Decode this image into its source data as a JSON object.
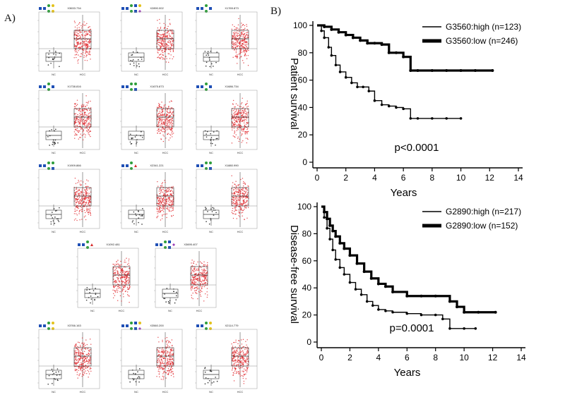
{
  "panel_labels": {
    "a": "A)",
    "b": "B)"
  },
  "panel_a": {
    "plots": [
      {
        "id": "a1",
        "title": "X3633.734",
        "glycan": "g1"
      },
      {
        "id": "a2",
        "title": "X2890.002",
        "glycan": "g2"
      },
      {
        "id": "a3",
        "title": "X1765.873",
        "glycan": "g3"
      },
      {
        "id": "a4",
        "title": "X1738.816",
        "glycan": "g3"
      },
      {
        "id": "a5",
        "title": "X1675.873",
        "glycan": "g4"
      },
      {
        "id": "a6",
        "title": "X1686.734",
        "glycan": "g3"
      },
      {
        "id": "a7",
        "title": "X1909.866",
        "glycan": "g4"
      },
      {
        "id": "a8",
        "title": "X2341.221",
        "glycan": "g5"
      },
      {
        "id": "a9",
        "title": "X1880.990",
        "glycan": "g4"
      },
      {
        "id": "a10",
        "title": "X1092.481",
        "glycan": "g5"
      },
      {
        "id": "a11",
        "title": "X3695.407",
        "glycan": "g6"
      },
      {
        "id": "a12",
        "title": "X3766.163",
        "glycan": "g1"
      },
      {
        "id": "a13",
        "title": "X3560.200",
        "glycan": "g2"
      },
      {
        "id": "a14",
        "title": "X2114.779",
        "glycan": "g1"
      }
    ],
    "group_labels": [
      "NC",
      "HCC"
    ]
  },
  "chart_data": [
    {
      "type": "line",
      "title": "",
      "xlabel": "Years",
      "ylabel": "Patient survival",
      "xlim": [
        0,
        14
      ],
      "ylim": [
        0,
        100
      ],
      "xticks": [
        0,
        2,
        4,
        6,
        8,
        10,
        12,
        14
      ],
      "yticks": [
        0,
        20,
        40,
        60,
        80,
        100
      ],
      "annotation": "p<0.0001",
      "legend_position": "top-right",
      "series": [
        {
          "name": "G3560:high (n=123)",
          "line_width": "thin",
          "x": [
            0,
            0.3,
            0.5,
            0.8,
            1.0,
            1.3,
            1.6,
            2.0,
            2.4,
            2.8,
            3.2,
            3.6,
            4.0,
            4.5,
            5.0,
            5.5,
            6.0,
            6.5,
            7.0,
            8.0,
            9.0,
            10.0
          ],
          "y": [
            100,
            96,
            91,
            84,
            78,
            71,
            66,
            62,
            58,
            55,
            55,
            52,
            45,
            42,
            41,
            40,
            39,
            32,
            32,
            32,
            32,
            32
          ]
        },
        {
          "name": "G3560:low (n=246)",
          "line_width": "thick",
          "x": [
            0,
            0.5,
            1.0,
            1.5,
            2.0,
            2.5,
            3.0,
            3.5,
            4.0,
            4.5,
            5.0,
            5.5,
            6.0,
            6.5,
            7.0,
            8.0,
            9.0,
            10.0,
            11.0,
            12.2
          ],
          "y": [
            100,
            99,
            97,
            95,
            93,
            91,
            89,
            87,
            87,
            86,
            80,
            80,
            77,
            67,
            67,
            67,
            67,
            67,
            67,
            67
          ]
        }
      ]
    },
    {
      "type": "line",
      "title": "",
      "xlabel": "Years",
      "ylabel": "Disease-free survival",
      "xlim": [
        0,
        14
      ],
      "ylim": [
        0,
        100
      ],
      "xticks": [
        0,
        2,
        4,
        6,
        8,
        10,
        12,
        14
      ],
      "yticks": [
        0,
        20,
        40,
        60,
        80,
        100
      ],
      "annotation": "p=0.0001",
      "legend_position": "top-right",
      "series": [
        {
          "name": "G2890:high (n=217)",
          "line_width": "thin",
          "x": [
            0,
            0.2,
            0.4,
            0.6,
            0.8,
            1.0,
            1.3,
            1.6,
            2.0,
            2.4,
            2.8,
            3.2,
            3.6,
            4.0,
            4.5,
            5.0,
            6.0,
            7.0,
            8.0,
            8.5,
            9.0,
            10.0,
            10.8
          ],
          "y": [
            100,
            92,
            84,
            76,
            68,
            61,
            55,
            50,
            44,
            39,
            35,
            30,
            27,
            24,
            23,
            22,
            21,
            20,
            20,
            17,
            10,
            10,
            10
          ]
        },
        {
          "name": "G2890:low (n=152)",
          "line_width": "thick",
          "x": [
            0,
            0.2,
            0.4,
            0.6,
            0.8,
            1.0,
            1.3,
            1.6,
            2.0,
            2.5,
            3.0,
            3.5,
            4.0,
            4.5,
            5.0,
            6.0,
            7.0,
            8.0,
            9.0,
            9.5,
            10.0,
            11.0,
            12.2
          ],
          "y": [
            100,
            96,
            91,
            86,
            82,
            78,
            73,
            69,
            64,
            58,
            52,
            47,
            43,
            41,
            37,
            34,
            34,
            34,
            30,
            26,
            22,
            22,
            22
          ]
        }
      ]
    }
  ]
}
